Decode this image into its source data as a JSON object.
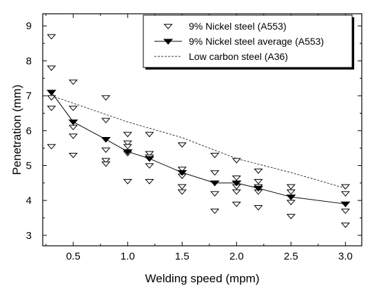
{
  "chart_data": {
    "type": "scatter",
    "xlabel": "Welding speed (mpm)",
    "ylabel": "Penetration (mm)",
    "xlim": [
      0.22,
      3.15
    ],
    "ylim": [
      2.7,
      9.35
    ],
    "x_ticks": [
      0.5,
      1.0,
      1.5,
      2.0,
      2.5,
      3.0
    ],
    "x_tick_labels": [
      "0.5",
      "1.0",
      "1.5",
      "2.0",
      "2.5",
      "3.0"
    ],
    "y_ticks": [
      3,
      4,
      5,
      6,
      7,
      8,
      9
    ],
    "y_tick_labels": [
      "3",
      "4",
      "5",
      "6",
      "7",
      "8",
      "9"
    ],
    "legend_position": "top-right",
    "series": [
      {
        "name": "9% Nickel steel (A553)",
        "style": "scatter",
        "marker": "open-triangle-down",
        "points": [
          [
            0.3,
            8.7
          ],
          [
            0.3,
            7.8
          ],
          [
            0.3,
            6.95
          ],
          [
            0.3,
            6.65
          ],
          [
            0.3,
            5.55
          ],
          [
            0.5,
            7.4
          ],
          [
            0.5,
            6.65
          ],
          [
            0.5,
            6.1
          ],
          [
            0.5,
            5.85
          ],
          [
            0.5,
            5.3
          ],
          [
            0.8,
            6.95
          ],
          [
            0.8,
            6.3
          ],
          [
            0.8,
            5.45
          ],
          [
            0.8,
            5.15
          ],
          [
            0.8,
            5.05
          ],
          [
            1.0,
            5.9
          ],
          [
            1.0,
            5.65
          ],
          [
            1.0,
            5.55
          ],
          [
            1.0,
            5.35
          ],
          [
            1.0,
            4.55
          ],
          [
            1.2,
            5.9
          ],
          [
            1.2,
            5.35
          ],
          [
            1.2,
            5.25
          ],
          [
            1.2,
            5.0
          ],
          [
            1.2,
            4.55
          ],
          [
            1.5,
            5.6
          ],
          [
            1.5,
            4.9
          ],
          [
            1.5,
            4.7
          ],
          [
            1.5,
            4.4
          ],
          [
            1.5,
            4.25
          ],
          [
            1.8,
            5.3
          ],
          [
            1.8,
            4.8
          ],
          [
            1.8,
            4.5
          ],
          [
            1.8,
            4.2
          ],
          [
            1.8,
            3.7
          ],
          [
            2.0,
            5.15
          ],
          [
            2.0,
            4.65
          ],
          [
            2.0,
            4.4
          ],
          [
            2.0,
            4.25
          ],
          [
            2.0,
            3.9
          ],
          [
            2.2,
            4.85
          ],
          [
            2.2,
            4.55
          ],
          [
            2.2,
            4.4
          ],
          [
            2.2,
            4.25
          ],
          [
            2.2,
            3.8
          ],
          [
            2.5,
            4.4
          ],
          [
            2.5,
            4.25
          ],
          [
            2.5,
            3.95
          ],
          [
            2.5,
            3.55
          ],
          [
            3.0,
            4.4
          ],
          [
            3.0,
            4.2
          ],
          [
            3.0,
            3.9
          ],
          [
            3.0,
            3.7
          ],
          [
            3.0,
            3.3
          ]
        ]
      },
      {
        "name": "9% Nickel steel average (A553)",
        "style": "line-marker",
        "marker": "filled-triangle-down",
        "x": [
          0.3,
          0.5,
          0.8,
          1.0,
          1.2,
          1.5,
          1.8,
          2.0,
          2.2,
          2.5,
          3.0
        ],
        "values": [
          7.1,
          6.25,
          5.75,
          5.4,
          5.2,
          4.8,
          4.5,
          4.5,
          4.35,
          4.1,
          3.9
        ]
      },
      {
        "name": "Low carbon steel (A36)",
        "style": "dashed-line",
        "x": [
          0.3,
          1.0,
          1.5,
          2.0,
          2.5,
          3.0
        ],
        "values": [
          7.0,
          6.25,
          5.8,
          5.2,
          4.8,
          4.35
        ]
      }
    ]
  }
}
